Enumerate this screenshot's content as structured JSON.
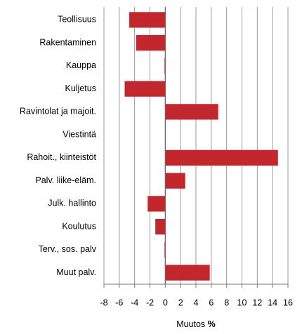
{
  "chart_data": {
    "type": "bar",
    "orientation": "horizontal",
    "categories": [
      "Teollisuus",
      "Rakentaminen",
      "Kauppa",
      "Kuljetus",
      "Ravintolat ja majoit.",
      "Viestintä",
      "Rahoit., kiinteistöt",
      "Palv. liike-eläm.",
      "Julk. hallinto",
      "Koulutus",
      "Terv., sos. palv",
      "Muut palv."
    ],
    "values": [
      -4.7,
      -3.8,
      -0.1,
      -5.3,
      6.9,
      0,
      14.7,
      2.6,
      -2.3,
      -1.3,
      -0.1,
      5.8
    ],
    "color": "#c1272d",
    "xlim": [
      -8,
      16
    ],
    "xticks": [
      -8,
      -6,
      -4,
      -2,
      0,
      2,
      4,
      6,
      8,
      10,
      12,
      14,
      16
    ],
    "xlabel": "Muutos",
    "xlabel_unit": "%",
    "grid": true
  }
}
